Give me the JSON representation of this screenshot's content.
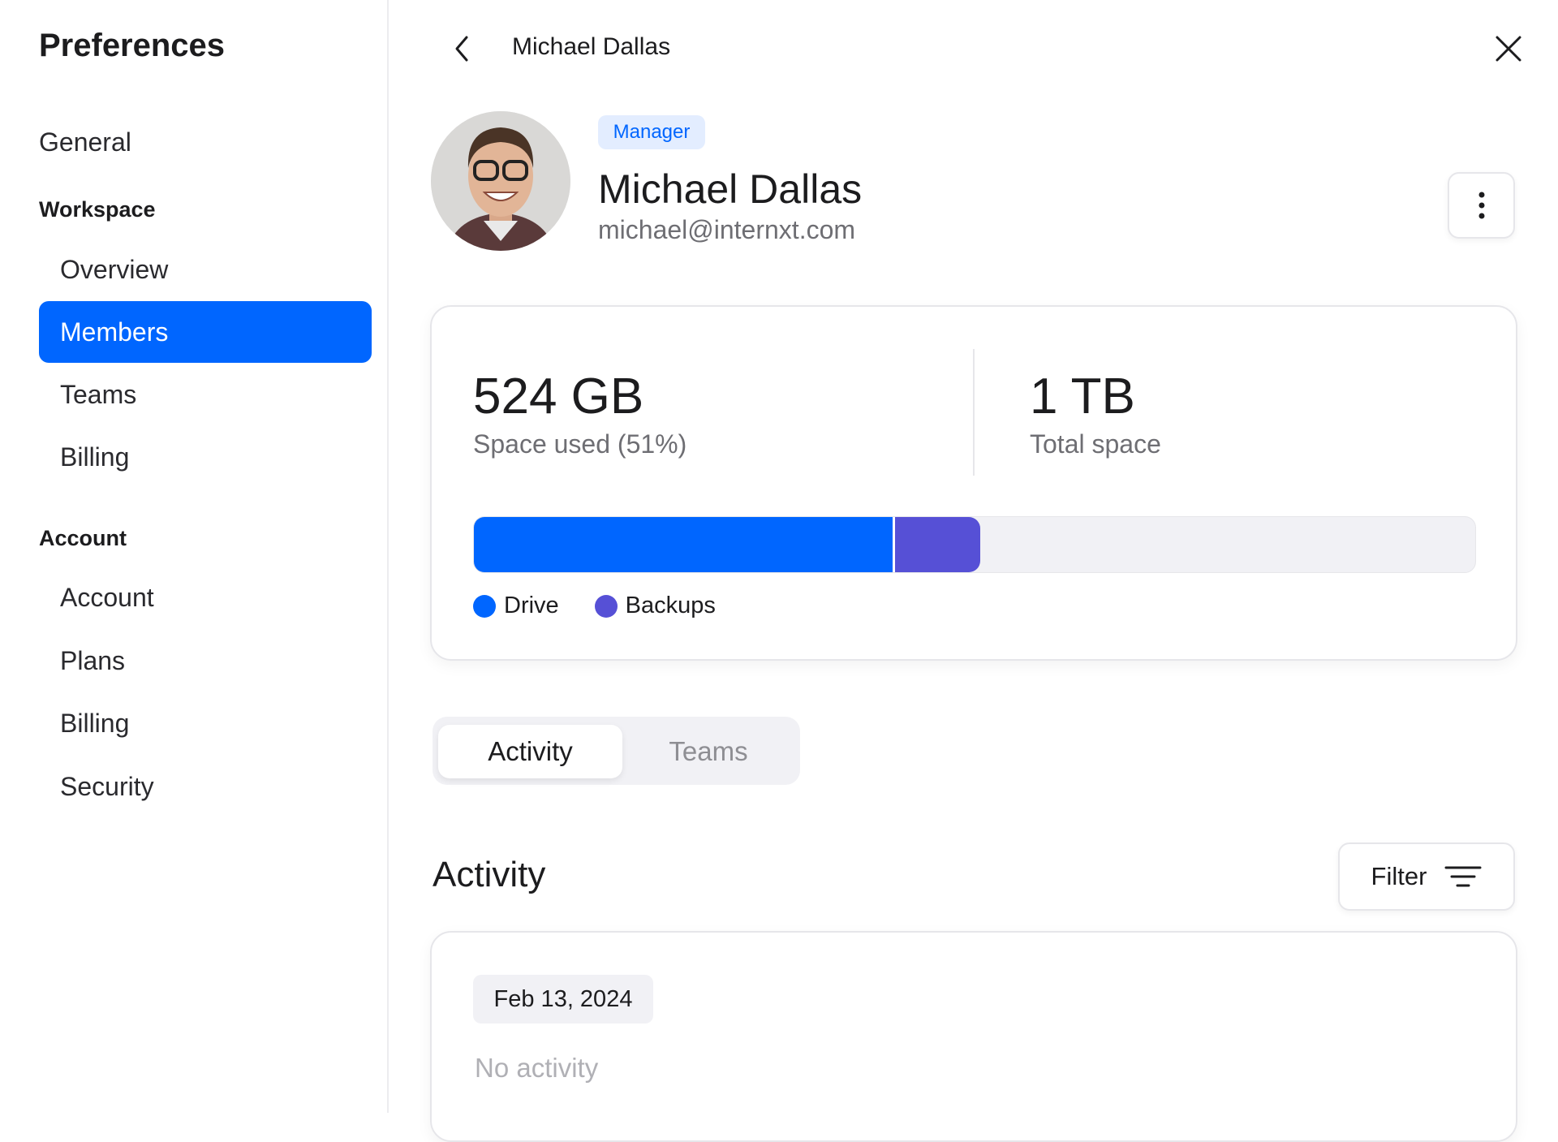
{
  "sidebar": {
    "title": "Preferences",
    "general": "General",
    "workspace": {
      "heading": "Workspace",
      "items": [
        {
          "label": "Overview"
        },
        {
          "label": "Members",
          "active": true
        },
        {
          "label": "Teams"
        },
        {
          "label": "Billing"
        }
      ]
    },
    "account": {
      "heading": "Account",
      "items": [
        {
          "label": "Account"
        },
        {
          "label": "Plans"
        },
        {
          "label": "Billing"
        },
        {
          "label": "Security"
        }
      ]
    }
  },
  "header": {
    "title": "Michael Dallas",
    "back_icon": "chevron-left-icon",
    "close_icon": "close-icon"
  },
  "profile": {
    "role_badge": "Manager",
    "name": "Michael Dallas",
    "email": "michael@internxt.com",
    "more_icon": "kebab-menu-icon"
  },
  "storage": {
    "used_value": "524 GB",
    "used_label": "Space used (51%)",
    "total_value": "1 TB",
    "total_label": "Total space",
    "segments": [
      {
        "name": "Drive",
        "fraction": 0.418,
        "color": "#0066ff"
      },
      {
        "name": "Backups",
        "fraction": 0.088,
        "color": "#5650d6"
      }
    ],
    "track_color": "#f1f1f5"
  },
  "tabs": [
    {
      "label": "Activity",
      "active": true
    },
    {
      "label": "Teams",
      "active": false
    }
  ],
  "activity": {
    "heading": "Activity",
    "filter_label": "Filter",
    "filter_icon": "filter-lines-icon",
    "date": "Feb 13, 2024",
    "empty_text": "No activity"
  },
  "colors": {
    "accent": "#0066ff",
    "badge_bg": "#e3edff",
    "badge_text": "#0066ff"
  }
}
